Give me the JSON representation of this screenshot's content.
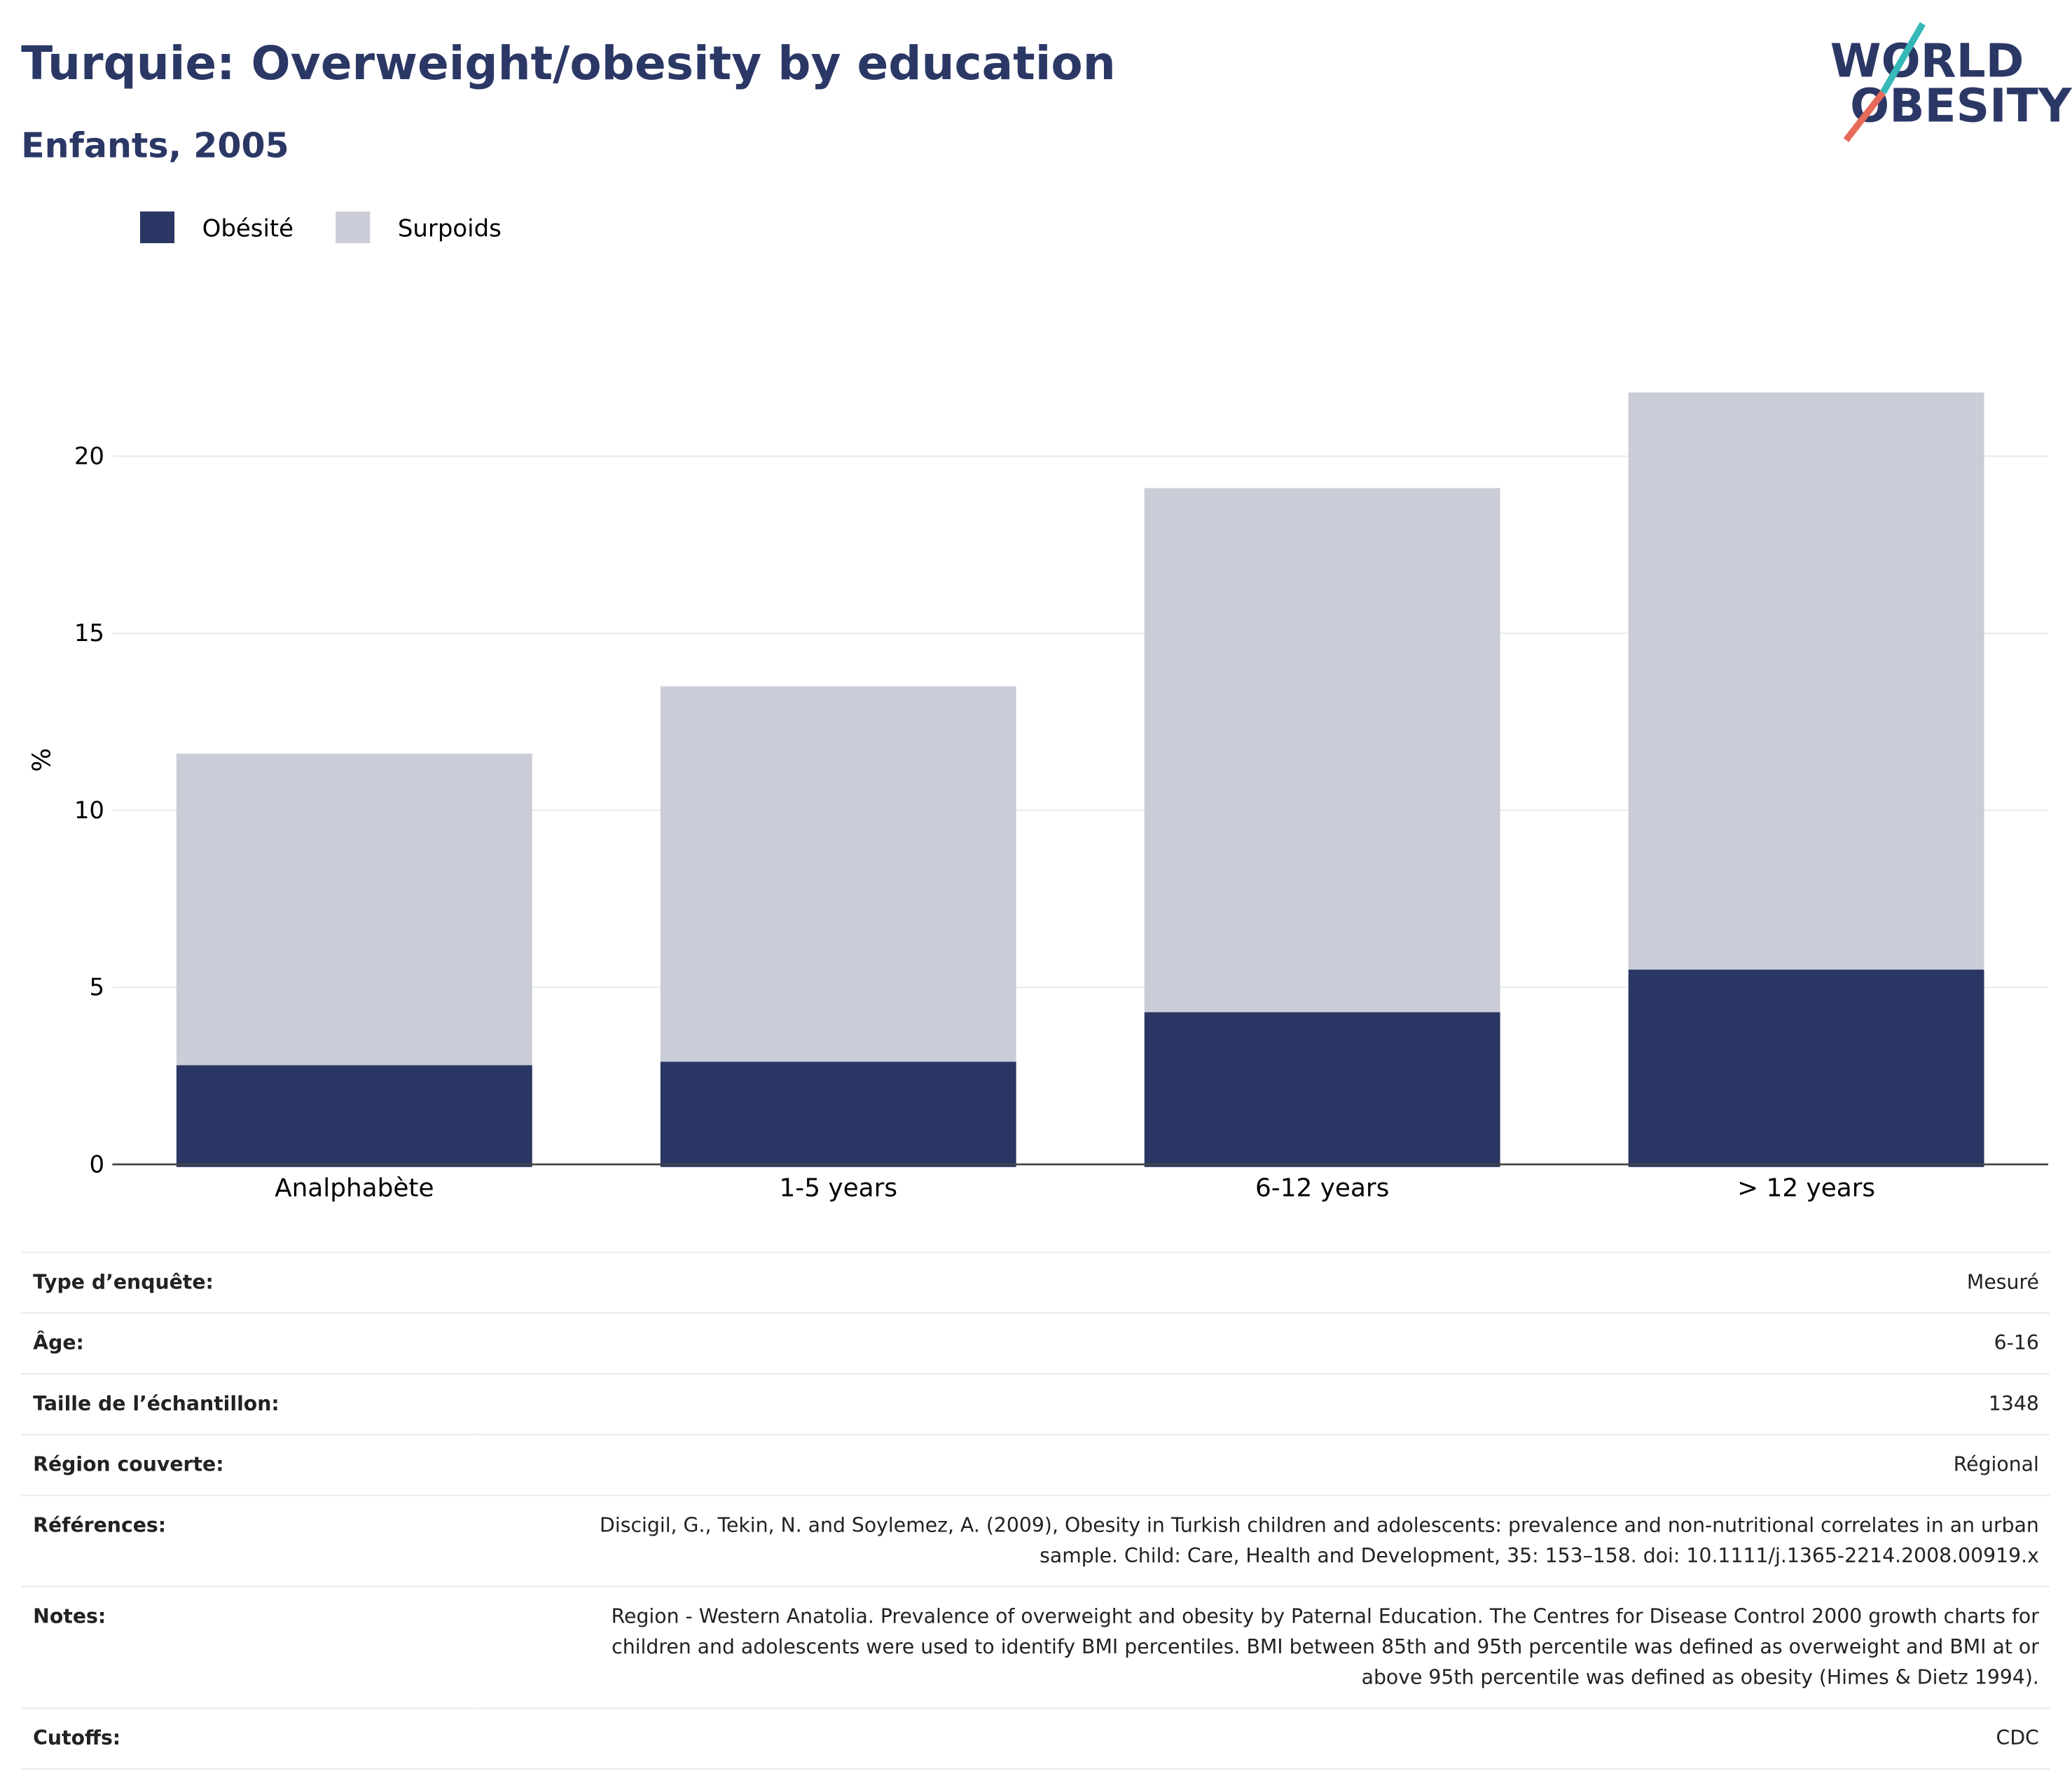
{
  "chart_data": {
    "type": "stacked_bar",
    "title": "Turquie: Overweight/obesity by education",
    "subtitle": "Enfants, 2005",
    "y_label": "%",
    "categories": [
      "Analphabète",
      "1-5 years",
      "6-12 years",
      "> 12 years"
    ],
    "series": [
      {
        "name": "Obésité",
        "color": "#2a3663",
        "values": [
          2.8,
          2.9,
          4.3,
          5.5
        ]
      },
      {
        "name": "Surpoids",
        "color": "#cacdd8",
        "values": [
          8.8,
          10.6,
          14.8,
          16.3
        ]
      }
    ],
    "ylim": [
      0,
      24
    ],
    "yticks": [
      0,
      5,
      10,
      15,
      20
    ],
    "grid": true,
    "legend": "top-left"
  },
  "logo": [
    "WORLD",
    "OBESITY"
  ],
  "details": [
    {
      "label": "Type d’enquête:",
      "value": "Mesuré"
    },
    {
      "label": "Âge:",
      "value": "6-16"
    },
    {
      "label": "Taille de l’échantillon:",
      "value": "1348"
    },
    {
      "label": "Région couverte:",
      "value": "Régional"
    },
    {
      "label": "Références:",
      "value": "Discigil, G., Tekin, N. and Soylemez, A. (2009), Obesity in Turkish children and adolescents: prevalence and non-nutritional correlates in an urban sample. Child: Care, Health and Development, 35: 153–158. doi: 10.1111/j.1365-2214.2008.00919.x"
    },
    {
      "label": "Notes:",
      "value": "Region - Western Anatolia. Prevalence of overweight and obesity by Paternal Education. The Centres for Disease Control 2000 growth charts for children and adolescents were used to identify BMI percentiles. BMI between 85th and 95th percentile was defined as overweight and BMI at or above 95th percentile was defined as obesity (Himes & Dietz 1994)."
    },
    {
      "label": "Cutoffs:",
      "value": "CDC"
    }
  ]
}
